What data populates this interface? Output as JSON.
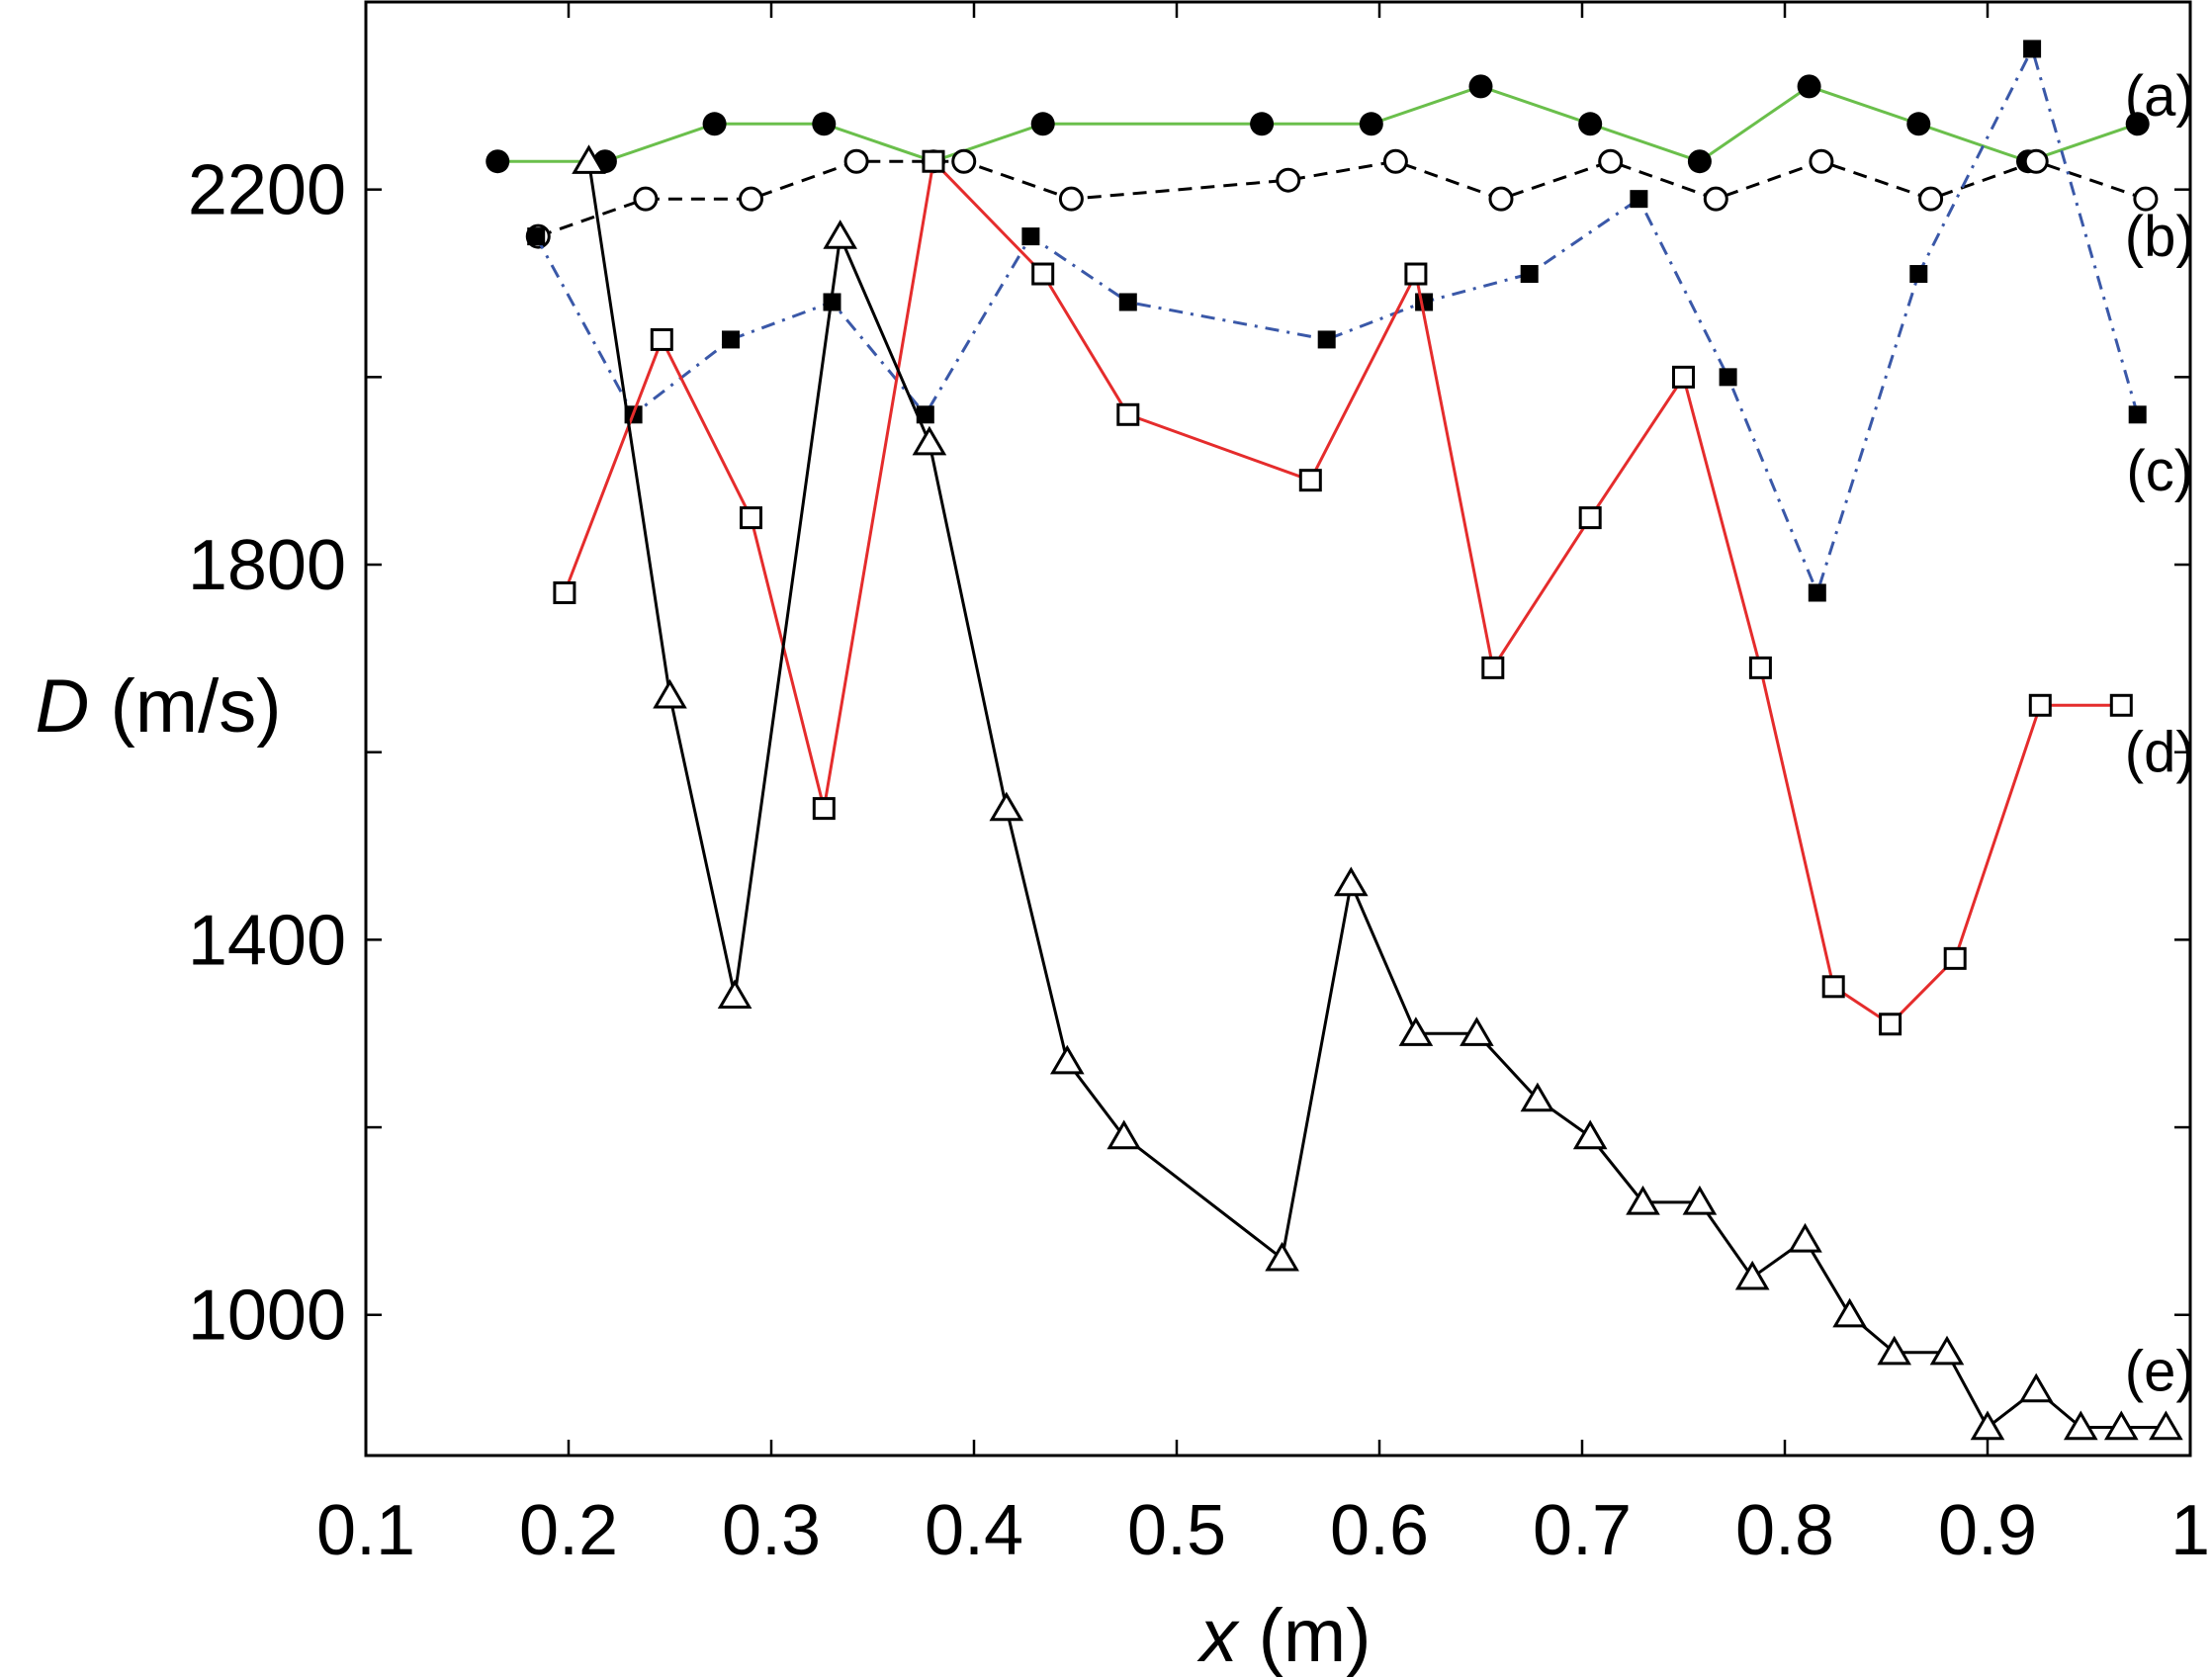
{
  "chart_data": {
    "type": "line",
    "title": "",
    "xlabel": {
      "var": "x",
      "unit": " (m)"
    },
    "ylabel": {
      "var": "D",
      "unit": " (m/s)"
    },
    "xlim": [
      0.1,
      1.0
    ],
    "ylim": [
      850,
      2400
    ],
    "xticks": [
      0.1,
      0.2,
      0.3,
      0.4,
      0.5,
      0.6,
      0.7,
      0.8,
      0.9,
      1.0
    ],
    "xtick_labels": [
      "0.1",
      "0.2",
      "0.3",
      "0.4",
      "0.5",
      "0.6",
      "0.7",
      "0.8",
      "0.9",
      "1"
    ],
    "yticks": [
      1000,
      1200,
      1400,
      1600,
      1800,
      2000,
      2200
    ],
    "ytick_labels": [
      "1000",
      "",
      "1400",
      "",
      "1800",
      "",
      "2200"
    ],
    "grid": false,
    "series": [
      {
        "name": "(a)",
        "color": "#6abf4b",
        "dash": "solid",
        "marker": "filled-circle",
        "label_at": [
          0.985,
          2300
        ],
        "points": [
          [
            0.165,
            2230
          ],
          [
            0.218,
            2230
          ],
          [
            0.272,
            2270
          ],
          [
            0.326,
            2270
          ],
          [
            0.38,
            2230
          ],
          [
            0.434,
            2270
          ],
          [
            0.542,
            2270
          ],
          [
            0.596,
            2270
          ],
          [
            0.65,
            2310
          ],
          [
            0.704,
            2270
          ],
          [
            0.758,
            2230
          ],
          [
            0.812,
            2310
          ],
          [
            0.866,
            2270
          ],
          [
            0.92,
            2230
          ],
          [
            0.974,
            2270
          ]
        ]
      },
      {
        "name": "(b)",
        "color": "#000000",
        "dash": "dashed",
        "marker": "open-circle",
        "label_at": [
          0.985,
          2150
        ],
        "points": [
          [
            0.185,
            2150
          ],
          [
            0.238,
            2190
          ],
          [
            0.29,
            2190
          ],
          [
            0.342,
            2230
          ],
          [
            0.395,
            2230
          ],
          [
            0.448,
            2190
          ],
          [
            0.555,
            2210
          ],
          [
            0.608,
            2230
          ],
          [
            0.66,
            2190
          ],
          [
            0.714,
            2230
          ],
          [
            0.766,
            2190
          ],
          [
            0.818,
            2230
          ],
          [
            0.872,
            2190
          ],
          [
            0.924,
            2230
          ],
          [
            0.978,
            2190
          ]
        ]
      },
      {
        "name": "(c)",
        "color": "#3a58a8",
        "dash": "dashdot",
        "marker": "filled-square",
        "label_at": [
          0.985,
          1900
        ],
        "points": [
          [
            0.184,
            2150
          ],
          [
            0.232,
            1960
          ],
          [
            0.28,
            2040
          ],
          [
            0.33,
            2080
          ],
          [
            0.376,
            1960
          ],
          [
            0.428,
            2150
          ],
          [
            0.476,
            2080
          ],
          [
            0.574,
            2040
          ],
          [
            0.622,
            2080
          ],
          [
            0.674,
            2110
          ],
          [
            0.728,
            2190
          ],
          [
            0.772,
            2000
          ],
          [
            0.816,
            1770
          ],
          [
            0.866,
            2110
          ],
          [
            0.922,
            2350
          ],
          [
            0.974,
            1960
          ]
        ]
      },
      {
        "name": "(d)",
        "color": "#e52c2c",
        "dash": "solid",
        "marker": "open-square",
        "label_at": [
          0.985,
          1600
        ],
        "points": [
          [
            0.198,
            1770
          ],
          [
            0.246,
            2040
          ],
          [
            0.29,
            1850
          ],
          [
            0.326,
            1540
          ],
          [
            0.38,
            2230
          ],
          [
            0.434,
            2110
          ],
          [
            0.476,
            1960
          ],
          [
            0.566,
            1890
          ],
          [
            0.618,
            2110
          ],
          [
            0.656,
            1690
          ],
          [
            0.704,
            1850
          ],
          [
            0.75,
            2000
          ],
          [
            0.788,
            1690
          ],
          [
            0.824,
            1350
          ],
          [
            0.852,
            1310
          ],
          [
            0.884,
            1380
          ],
          [
            0.926,
            1650
          ],
          [
            0.966,
            1650
          ]
        ]
      },
      {
        "name": "(e)",
        "color": "#000000",
        "dash": "solid",
        "marker": "open-triangle",
        "label_at": [
          0.985,
          940
        ],
        "points": [
          [
            0.21,
            2230
          ],
          [
            0.25,
            1660
          ],
          [
            0.282,
            1340
          ],
          [
            0.334,
            2150
          ],
          [
            0.378,
            1930
          ],
          [
            0.416,
            1540
          ],
          [
            0.446,
            1270
          ],
          [
            0.474,
            1190
          ],
          [
            0.552,
            1060
          ],
          [
            0.586,
            1460
          ],
          [
            0.618,
            1300
          ],
          [
            0.648,
            1300
          ],
          [
            0.678,
            1230
          ],
          [
            0.704,
            1190
          ],
          [
            0.73,
            1120
          ],
          [
            0.758,
            1120
          ],
          [
            0.784,
            1040
          ],
          [
            0.81,
            1080
          ],
          [
            0.832,
            1000
          ],
          [
            0.854,
            960
          ],
          [
            0.88,
            960
          ],
          [
            0.9,
            880
          ],
          [
            0.924,
            920
          ],
          [
            0.946,
            880
          ],
          [
            0.966,
            880
          ],
          [
            0.988,
            880
          ]
        ]
      }
    ]
  }
}
